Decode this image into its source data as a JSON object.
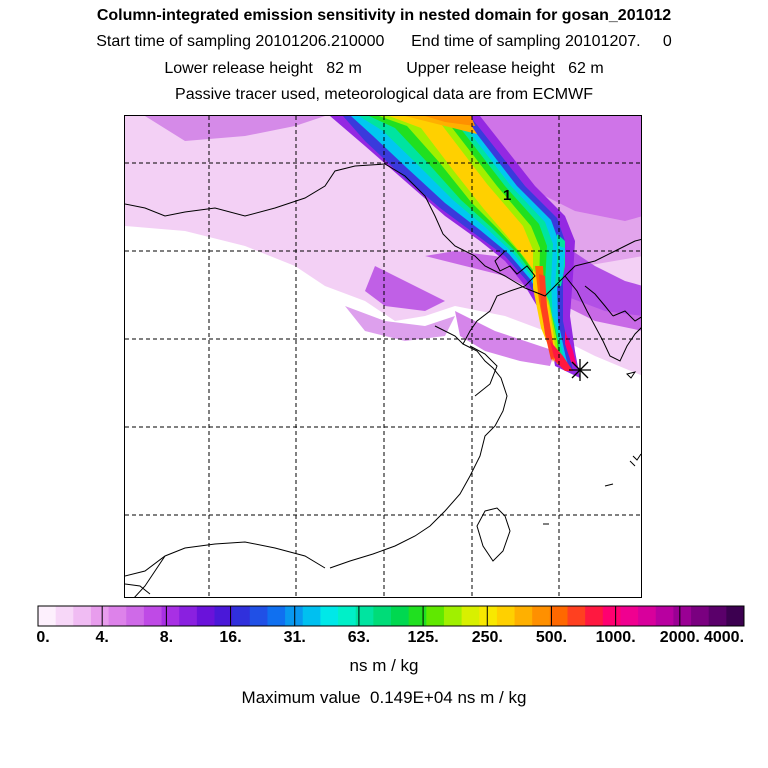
{
  "header": {
    "title": "Column-integrated emission sensitivity in nested domain for gosan_201012",
    "sampling": "Start time of sampling 20101206.210000      End time of sampling 20101207.     0",
    "heights": "Lower release height   82 m          Upper release height   62 m",
    "tracer": "Passive tracer used, meteorological data are from ECMWF"
  },
  "map": {
    "cluster_label": "1",
    "release_marker": "asterisk-star"
  },
  "colorbar": {
    "tick_labels": [
      "0.",
      "4.",
      "8.",
      "16.",
      "31.",
      "63.",
      "125.",
      "250.",
      "500.",
      "1000.",
      "2000.",
      "4000."
    ],
    "colors": [
      "#fdf0fd",
      "#f7d7f8",
      "#f0bcf3",
      "#e89ded",
      "#dd82ea",
      "#cf6ae8",
      "#bf4ae6",
      "#a830e4",
      "#8a20e0",
      "#6a12da",
      "#4a18d8",
      "#3030dc",
      "#2050e6",
      "#1070f0",
      "#0898f0",
      "#00c0f0",
      "#00e8e8",
      "#00f0c8",
      "#00e4a0",
      "#00dc78",
      "#00d850",
      "#20e020",
      "#60e800",
      "#a0f000",
      "#d8f000",
      "#f8e800",
      "#ffd000",
      "#ffb000",
      "#ff9000",
      "#ff6800",
      "#ff4020",
      "#ff1840",
      "#ff0070",
      "#f00090",
      "#d8009c",
      "#b800a0",
      "#9a0094",
      "#7a0080",
      "#5a006a",
      "#3c0050"
    ],
    "units": "ns m / kg",
    "max_value_text": "Maximum value  0.149E+04 ns m / kg"
  },
  "colors": {
    "frame": "#000000",
    "grid": "#000000",
    "coast": "#000000"
  }
}
